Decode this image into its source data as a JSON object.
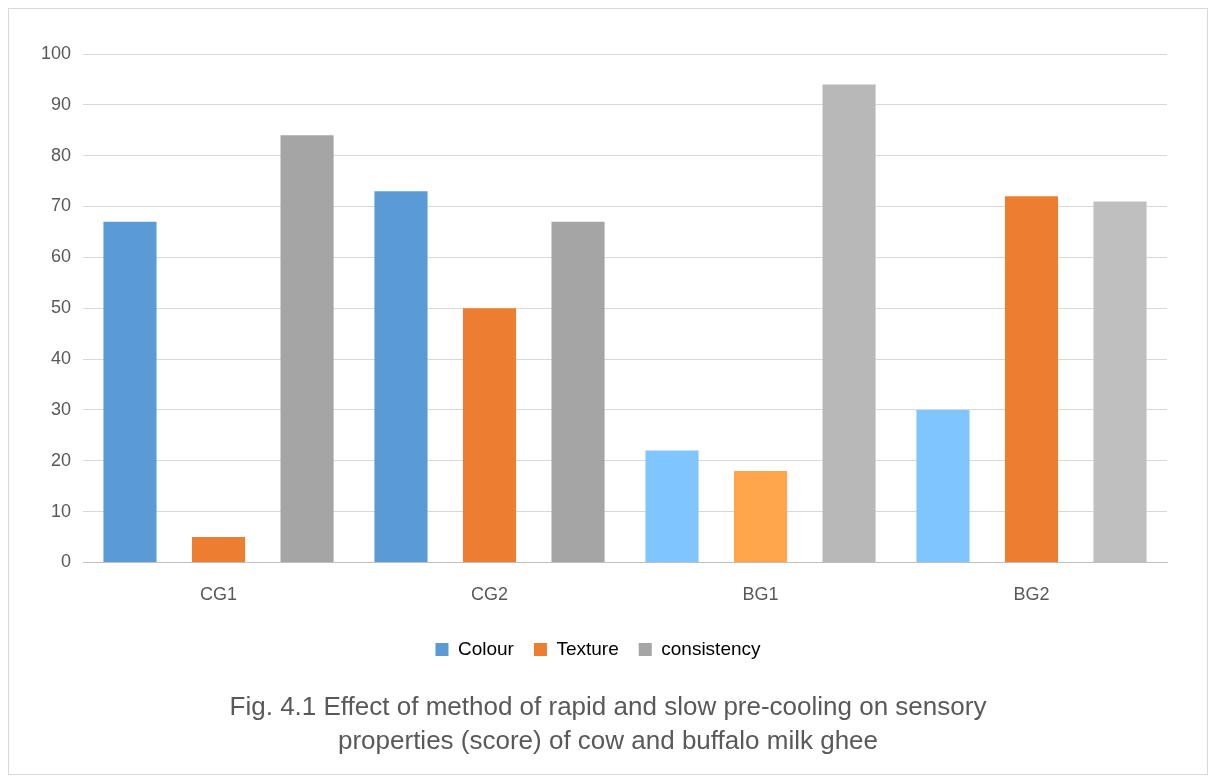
{
  "chart_data": {
    "type": "bar",
    "title": "Fig. 4.1 Effect of method of rapid and slow pre-cooling on sensory properties (score) of cow and buffalo milk ghee",
    "categories": [
      "CG1",
      "CG2",
      "BG1",
      "BG2"
    ],
    "series": [
      {
        "name": "Colour",
        "color": "#5b9bd5",
        "colors": [
          "#5b9bd5",
          "#5b9bd5",
          "#7fc6ff",
          "#7fc6ff"
        ],
        "values": [
          67,
          73,
          22,
          30
        ]
      },
      {
        "name": "Texture",
        "color": "#ed7d31",
        "colors": [
          "#ed7d31",
          "#ed7d31",
          "#ffa64d",
          "#ed7d31"
        ],
        "values": [
          5,
          50,
          18,
          72
        ]
      },
      {
        "name": "consistency",
        "color": "#a5a5a5",
        "colors": [
          "#a5a5a5",
          "#a5a5a5",
          "#b8b8b8",
          "#bfbfbf"
        ],
        "values": [
          84,
          67,
          94,
          71
        ]
      }
    ],
    "ylim": [
      0,
      100
    ],
    "yticks": [
      0,
      10,
      20,
      30,
      40,
      50,
      60,
      70,
      80,
      90,
      100
    ],
    "grid": "y",
    "legend": "bottom"
  }
}
